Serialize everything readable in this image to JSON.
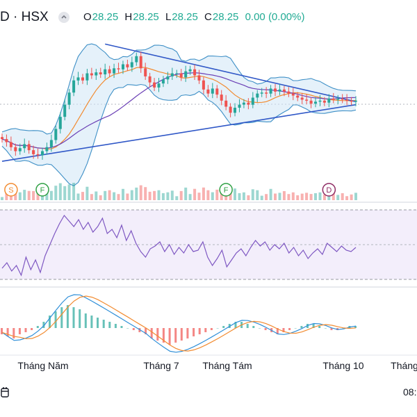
{
  "header": {
    "symbol": "D · HSX",
    "ohlc": [
      {
        "key": "O",
        "value": "28.25"
      },
      {
        "key": "H",
        "value": "28.25"
      },
      {
        "key": "L",
        "value": "28.25"
      },
      {
        "key": "C",
        "value": "28.25"
      }
    ],
    "change": "0.00 (0.00%)"
  },
  "footer": {
    "time": "08:"
  },
  "colors": {
    "up": "#26a69a",
    "down": "#ef5350",
    "band": "#3d8fc6",
    "band_fill": "#cfe6f6",
    "ma_orange": "#f28b30",
    "ma_purple": "#6a3fb5",
    "trendline": "#2f57c7",
    "rsi": "#7e57c2",
    "rsi_bg": "#f3eefb",
    "macd": "#2f8fd8",
    "signal": "#f28b30"
  },
  "chart_data": [
    {
      "type": "candlestick",
      "name": "price",
      "x_ticks": [
        "Tháng Năm",
        "Tháng 7",
        "Tháng Tám",
        "Tháng 10",
        "Tháng"
      ],
      "close": [
        33.4,
        33.1,
        32.6,
        32.2,
        32.5,
        32.9,
        32.3,
        31.9,
        31.8,
        32.2,
        32.6,
        33.3,
        34.4,
        35.6,
        36.8,
        38.0,
        39.2,
        39.5,
        39.2,
        39.9,
        39.7,
        40.0,
        39.8,
        40.3,
        39.9,
        40.4,
        40.3,
        40.8,
        40.5,
        41.0,
        41.6,
        40.4,
        39.6,
        39.0,
        38.5,
        38.9,
        39.3,
        39.6,
        39.9,
        39.9,
        39.5,
        40.1,
        40.3,
        39.7,
        39.2,
        38.3,
        37.9,
        38.4,
        37.8,
        37.2,
        36.6,
        36.0,
        36.5,
        36.8,
        37.0,
        36.8,
        37.5,
        37.9,
        38.0,
        37.9,
        38.4,
        38.1,
        38.3,
        38.1,
        37.9,
        37.7,
        37.5,
        37.3,
        37.2,
        36.9,
        37.1,
        37.2,
        37.0,
        37.4,
        37.3,
        37.4,
        37.3,
        37.2,
        37.1,
        37.2
      ],
      "volume_markers": [
        "S",
        "F",
        "F",
        "D"
      ]
    },
    {
      "type": "line",
      "name": "rsi",
      "values": [
        38,
        42,
        36,
        40,
        33,
        46,
        37,
        44,
        35,
        47,
        55,
        63,
        70,
        76,
        72,
        68,
        73,
        66,
        71,
        64,
        68,
        74,
        63,
        66,
        60,
        69,
        58,
        65,
        56,
        50,
        46,
        52,
        54,
        57,
        50,
        55,
        48,
        53,
        49,
        55,
        50,
        51,
        57,
        46,
        40,
        45,
        51,
        39,
        44,
        49,
        52,
        47,
        53,
        58,
        54,
        57,
        51,
        55,
        52,
        56,
        49,
        53,
        47,
        51,
        45,
        49,
        52,
        48,
        56,
        53,
        50,
        54,
        51,
        50,
        53
      ]
    },
    {
      "type": "bar",
      "name": "macd",
      "histogram": [
        -0.3,
        -0.4,
        -0.5,
        -0.3,
        -0.2,
        -0.1,
        0.1,
        0.3,
        0.6,
        0.8,
        1.0,
        1.1,
        1.0,
        0.9,
        0.7,
        0.6,
        0.5,
        0.4,
        0.3,
        0.2,
        0.1,
        0.0,
        -0.1,
        -0.2,
        -0.3,
        -0.5,
        -0.6,
        -0.7,
        -0.8,
        -0.7,
        -0.6,
        -0.5,
        -0.4,
        -0.3,
        -0.2,
        -0.1,
        0.0,
        0.1,
        0.2,
        0.3,
        0.3,
        0.2,
        0.1,
        0.0,
        -0.1,
        -0.2,
        -0.3,
        -0.2,
        -0.1,
        0.0,
        0.1,
        0.2,
        0.2,
        0.1,
        0.0,
        -0.1,
        -0.1,
        0.0,
        0.1,
        0.1
      ]
    }
  ]
}
